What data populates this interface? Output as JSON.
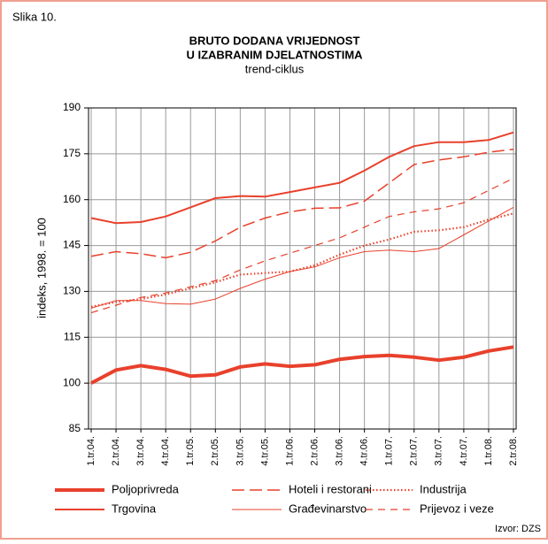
{
  "chart_data": {
    "type": "line",
    "figure_label": "Slika 10.",
    "title_lines": [
      "BRUTO DODANA VRIJEDNOST",
      "U IZABRANIM DJELATNOSTIMA"
    ],
    "subtitle": "trend-ciklus",
    "y_label": "indeks, 1998. = 100",
    "source": "Izvor: DZS",
    "categories": [
      "1.tr.04.",
      "2.tr.04.",
      "3.tr.04.",
      "4.tr.04.",
      "1.tr.05.",
      "2.tr.05.",
      "3.tr.05.",
      "4.tr.05.",
      "1.tr.06.",
      "2.tr.06.",
      "3.tr.06.",
      "4.tr.06.",
      "1.tr.07.",
      "2.tr.07.",
      "3.tr.07.",
      "4.tr.07.",
      "1.tr.08.",
      "2.tr.08."
    ],
    "ylim": [
      85,
      190
    ],
    "yticks": [
      85,
      100,
      115,
      130,
      145,
      160,
      175,
      190
    ],
    "grid": true,
    "legend": "bottom",
    "series": [
      {
        "name": "Poljoprivreda",
        "color": "#e8412c",
        "stroke_width": 4,
        "dash": "none",
        "values": [
          100,
          104.3,
          105.7,
          104.5,
          102.3,
          102.7,
          105.3,
          106.3,
          105.5,
          106,
          107.8,
          108.7,
          109.1,
          108.5,
          107.5,
          108.5,
          110.5,
          111.8
        ]
      },
      {
        "name": "Trgovina",
        "color": "#e8412c",
        "stroke_width": 2,
        "dash": "none",
        "values": [
          154,
          152.3,
          152.7,
          154.5,
          157.5,
          160.5,
          161.2,
          161,
          162.5,
          164,
          165.5,
          169.5,
          174,
          177.5,
          178.8,
          178.8,
          179.5,
          182
        ]
      },
      {
        "name": "Hoteli i restorani",
        "color": "#e8412c",
        "stroke_width": 1.5,
        "dash": "14 6",
        "values": [
          141.5,
          143,
          142.3,
          141,
          142.8,
          146.5,
          151,
          154,
          156,
          157.2,
          157.3,
          159.5,
          165.5,
          171.5,
          173,
          174,
          175.5,
          176.5
        ]
      },
      {
        "name": "Građevinarstvo",
        "color": "#e8412c",
        "stroke_width": 1,
        "dash": "none",
        "values": [
          124.5,
          127,
          127,
          126,
          125.8,
          127.5,
          131,
          134,
          136.5,
          138,
          141,
          143,
          143.5,
          143,
          144,
          148.5,
          153,
          157.5
        ]
      },
      {
        "name": "Industrija",
        "color": "#e8412c",
        "stroke_width": 2.2,
        "dash": "1.5 2.5",
        "values": [
          125,
          126.5,
          127.5,
          129,
          131,
          133,
          135.5,
          136,
          136.5,
          138.5,
          142,
          145,
          147,
          149.5,
          150,
          151,
          153.5,
          155.5
        ]
      },
      {
        "name": "Prijevoz i veze",
        "color": "#e8412c",
        "stroke_width": 1.2,
        "dash": "8 6",
        "values": [
          123,
          125.5,
          128,
          129.5,
          131.5,
          133.5,
          137,
          140,
          142.5,
          145,
          147.5,
          151,
          154.5,
          156,
          157,
          159,
          163,
          167
        ]
      }
    ]
  }
}
